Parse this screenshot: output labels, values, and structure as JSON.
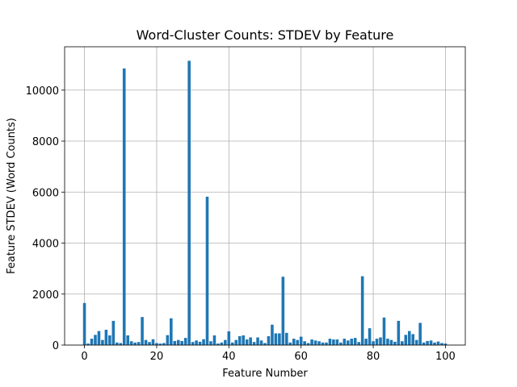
{
  "chart_data": {
    "type": "bar",
    "title": "Word-Cluster Counts: STDEV by Feature",
    "xlabel": "Feature Number",
    "ylabel": "Feature STDEV (Word Counts)",
    "xlim": [
      -5.5,
      105.5
    ],
    "ylim": [
      0,
      11700
    ],
    "xticks": [
      0,
      20,
      40,
      60,
      80,
      100
    ],
    "yticks": [
      0,
      2000,
      4000,
      6000,
      8000,
      10000
    ],
    "grid": true,
    "bar_color": "#1f77b4",
    "x": [
      0,
      1,
      2,
      3,
      4,
      5,
      6,
      7,
      8,
      9,
      10,
      11,
      12,
      13,
      14,
      15,
      16,
      17,
      18,
      19,
      20,
      21,
      22,
      23,
      24,
      25,
      26,
      27,
      28,
      29,
      30,
      31,
      32,
      33,
      34,
      35,
      36,
      37,
      38,
      39,
      40,
      41,
      42,
      43,
      44,
      45,
      46,
      47,
      48,
      49,
      50,
      51,
      52,
      53,
      54,
      55,
      56,
      57,
      58,
      59,
      60,
      61,
      62,
      63,
      64,
      65,
      66,
      67,
      68,
      69,
      70,
      71,
      72,
      73,
      74,
      75,
      76,
      77,
      78,
      79,
      80,
      81,
      82,
      83,
      84,
      85,
      86,
      87,
      88,
      89,
      90,
      91,
      92,
      93,
      94,
      95,
      96,
      97,
      98,
      99,
      100
    ],
    "values": [
      1650,
      60,
      250,
      400,
      550,
      200,
      600,
      380,
      950,
      100,
      80,
      10850,
      380,
      150,
      100,
      120,
      1100,
      200,
      120,
      230,
      80,
      60,
      80,
      390,
      1050,
      160,
      200,
      160,
      280,
      11150,
      120,
      180,
      130,
      230,
      5820,
      150,
      380,
      60,
      100,
      200,
      540,
      100,
      200,
      350,
      380,
      220,
      300,
      120,
      300,
      180,
      80,
      350,
      800,
      460,
      460,
      2680,
      480,
      100,
      250,
      200,
      330,
      150,
      80,
      220,
      180,
      150,
      100,
      100,
      250,
      220,
      220,
      100,
      250,
      180,
      250,
      280,
      120,
      2700,
      250,
      660,
      150,
      250,
      300,
      1080,
      250,
      200,
      130,
      950,
      150,
      400,
      550,
      430,
      200,
      870,
      100,
      160,
      180,
      100,
      140,
      80,
      60
    ]
  }
}
